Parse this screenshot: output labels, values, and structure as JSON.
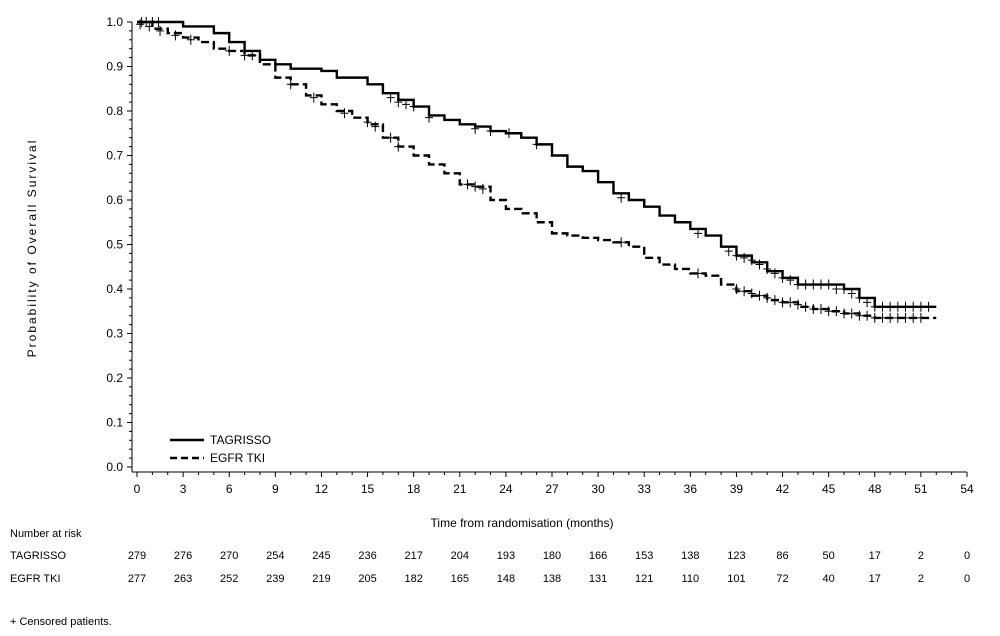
{
  "chart_data": {
    "type": "line",
    "title": "",
    "xlabel": "Time from randomisation (months)",
    "ylabel": "Probability of Overall Survival",
    "xlim": [
      0,
      54
    ],
    "ylim": [
      0,
      1.0
    ],
    "x_ticks": [
      0,
      3,
      6,
      9,
      12,
      15,
      18,
      21,
      24,
      27,
      30,
      33,
      36,
      39,
      42,
      45,
      48,
      51,
      54
    ],
    "y_ticks": [
      0.0,
      0.1,
      0.2,
      0.3,
      0.4,
      0.5,
      0.6,
      0.7,
      0.8,
      0.9,
      1.0
    ],
    "y_tick_labels": [
      "0.0",
      "0.1",
      "0.2",
      "0.3",
      "0.4",
      "0.5",
      "0.6",
      "0.7",
      "0.8",
      "0.9",
      "1.0"
    ],
    "legend_position": "bottom-left",
    "series": [
      {
        "name": "TAGRISSO",
        "line_style": "solid",
        "color": "#000000",
        "points": [
          [
            0,
            1.0
          ],
          [
            3,
            0.99
          ],
          [
            5,
            0.975
          ],
          [
            6,
            0.955
          ],
          [
            7,
            0.935
          ],
          [
            8,
            0.915
          ],
          [
            9,
            0.905
          ],
          [
            10,
            0.895
          ],
          [
            12,
            0.89
          ],
          [
            13,
            0.875
          ],
          [
            15,
            0.86
          ],
          [
            16,
            0.84
          ],
          [
            17,
            0.825
          ],
          [
            18,
            0.81
          ],
          [
            19,
            0.79
          ],
          [
            20,
            0.78
          ],
          [
            21,
            0.77
          ],
          [
            22,
            0.765
          ],
          [
            23,
            0.755
          ],
          [
            24,
            0.75
          ],
          [
            25,
            0.74
          ],
          [
            26,
            0.725
          ],
          [
            27,
            0.7
          ],
          [
            28,
            0.675
          ],
          [
            29,
            0.665
          ],
          [
            30,
            0.64
          ],
          [
            31,
            0.615
          ],
          [
            32,
            0.6
          ],
          [
            33,
            0.585
          ],
          [
            34,
            0.565
          ],
          [
            35,
            0.55
          ],
          [
            36,
            0.535
          ],
          [
            37,
            0.52
          ],
          [
            38,
            0.495
          ],
          [
            39,
            0.475
          ],
          [
            40,
            0.46
          ],
          [
            41,
            0.44
          ],
          [
            42,
            0.425
          ],
          [
            43,
            0.41
          ],
          [
            45,
            0.41
          ],
          [
            46,
            0.4
          ],
          [
            47,
            0.38
          ],
          [
            48,
            0.36
          ],
          [
            52,
            0.36
          ]
        ],
        "censored": [
          [
            0.3,
            1.0
          ],
          [
            0.6,
            1.0
          ],
          [
            1,
            1.0
          ],
          [
            1.4,
            1.0
          ],
          [
            7,
            0.925
          ],
          [
            16.5,
            0.83
          ],
          [
            17,
            0.82
          ],
          [
            17.5,
            0.815
          ],
          [
            18,
            0.81
          ],
          [
            19,
            0.785
          ],
          [
            22,
            0.76
          ],
          [
            23,
            0.755
          ],
          [
            24.2,
            0.75
          ],
          [
            26,
            0.725
          ],
          [
            31.5,
            0.605
          ],
          [
            36.5,
            0.525
          ],
          [
            38.5,
            0.485
          ],
          [
            39,
            0.475
          ],
          [
            39.5,
            0.47
          ],
          [
            40,
            0.465
          ],
          [
            40.5,
            0.455
          ],
          [
            41,
            0.445
          ],
          [
            41.5,
            0.435
          ],
          [
            42,
            0.425
          ],
          [
            42.5,
            0.42
          ],
          [
            43,
            0.41
          ],
          [
            43.5,
            0.41
          ],
          [
            44,
            0.41
          ],
          [
            44.5,
            0.41
          ],
          [
            45,
            0.41
          ],
          [
            45.5,
            0.4
          ],
          [
            46,
            0.4
          ],
          [
            46.5,
            0.39
          ],
          [
            47,
            0.38
          ],
          [
            47.5,
            0.37
          ],
          [
            48,
            0.36
          ],
          [
            48.5,
            0.36
          ],
          [
            49,
            0.36
          ],
          [
            49.5,
            0.36
          ],
          [
            50,
            0.36
          ],
          [
            50.5,
            0.36
          ],
          [
            51,
            0.36
          ],
          [
            51.5,
            0.36
          ]
        ]
      },
      {
        "name": "EGFR TKI",
        "line_style": "dashed",
        "color": "#000000",
        "points": [
          [
            0,
            1.0
          ],
          [
            1,
            0.985
          ],
          [
            2,
            0.975
          ],
          [
            3,
            0.965
          ],
          [
            4,
            0.955
          ],
          [
            5,
            0.94
          ],
          [
            6,
            0.935
          ],
          [
            7,
            0.925
          ],
          [
            8,
            0.905
          ],
          [
            9,
            0.875
          ],
          [
            10,
            0.86
          ],
          [
            11,
            0.835
          ],
          [
            12,
            0.815
          ],
          [
            13,
            0.8
          ],
          [
            14,
            0.785
          ],
          [
            15,
            0.77
          ],
          [
            16,
            0.74
          ],
          [
            17,
            0.72
          ],
          [
            18,
            0.7
          ],
          [
            19,
            0.68
          ],
          [
            20,
            0.66
          ],
          [
            21,
            0.635
          ],
          [
            22,
            0.63
          ],
          [
            23,
            0.6
          ],
          [
            24,
            0.58
          ],
          [
            25,
            0.57
          ],
          [
            26,
            0.55
          ],
          [
            27,
            0.525
          ],
          [
            28,
            0.52
          ],
          [
            29,
            0.515
          ],
          [
            30,
            0.51
          ],
          [
            31,
            0.505
          ],
          [
            32,
            0.495
          ],
          [
            33,
            0.47
          ],
          [
            34,
            0.455
          ],
          [
            35,
            0.445
          ],
          [
            36,
            0.435
          ],
          [
            37,
            0.43
          ],
          [
            38,
            0.41
          ],
          [
            39,
            0.395
          ],
          [
            40,
            0.385
          ],
          [
            41,
            0.375
          ],
          [
            42,
            0.37
          ],
          [
            43,
            0.36
          ],
          [
            44,
            0.355
          ],
          [
            45,
            0.35
          ],
          [
            46,
            0.345
          ],
          [
            47,
            0.34
          ],
          [
            48,
            0.335
          ],
          [
            52,
            0.335
          ]
        ],
        "censored": [
          [
            0.2,
            0.995
          ],
          [
            0.8,
            0.99
          ],
          [
            1.5,
            0.98
          ],
          [
            2.5,
            0.97
          ],
          [
            3.5,
            0.96
          ],
          [
            6,
            0.935
          ],
          [
            7.5,
            0.925
          ],
          [
            10,
            0.86
          ],
          [
            11.5,
            0.83
          ],
          [
            13.5,
            0.795
          ],
          [
            15,
            0.775
          ],
          [
            15.5,
            0.765
          ],
          [
            16.5,
            0.74
          ],
          [
            17,
            0.72
          ],
          [
            21.5,
            0.635
          ],
          [
            22,
            0.63
          ],
          [
            22.5,
            0.625
          ],
          [
            31.5,
            0.505
          ],
          [
            36.5,
            0.435
          ],
          [
            39,
            0.4
          ],
          [
            39.5,
            0.395
          ],
          [
            40,
            0.39
          ],
          [
            40.5,
            0.385
          ],
          [
            41,
            0.38
          ],
          [
            41.5,
            0.375
          ],
          [
            42,
            0.37
          ],
          [
            42.5,
            0.37
          ],
          [
            43,
            0.365
          ],
          [
            43.5,
            0.36
          ],
          [
            44,
            0.355
          ],
          [
            44.5,
            0.355
          ],
          [
            45,
            0.35
          ],
          [
            45.5,
            0.35
          ],
          [
            46,
            0.345
          ],
          [
            46.5,
            0.345
          ],
          [
            47,
            0.34
          ],
          [
            47.5,
            0.34
          ],
          [
            48,
            0.335
          ],
          [
            48.5,
            0.335
          ],
          [
            49,
            0.335
          ],
          [
            49.5,
            0.335
          ],
          [
            50,
            0.335
          ],
          [
            50.5,
            0.335
          ],
          [
            51,
            0.335
          ]
        ]
      }
    ]
  },
  "risk_table": {
    "title": "Number at risk",
    "columns": [
      0,
      3,
      6,
      9,
      12,
      15,
      18,
      21,
      24,
      27,
      30,
      33,
      36,
      39,
      42,
      45,
      48,
      51,
      54
    ],
    "rows": [
      {
        "label": "TAGRISSO",
        "values": [
          "279",
          "276",
          "270",
          "254",
          "245",
          "236",
          "217",
          "204",
          "193",
          "180",
          "166",
          "153",
          "138",
          "123",
          "86",
          "50",
          "17",
          "2",
          "0"
        ]
      },
      {
        "label": "EGFR TKI",
        "values": [
          "277",
          "263",
          "252",
          "239",
          "219",
          "205",
          "182",
          "165",
          "148",
          "138",
          "131",
          "121",
          "110",
          "101",
          "72",
          "40",
          "17",
          "2",
          "0"
        ]
      }
    ]
  },
  "footnote": "+ Censored patients."
}
